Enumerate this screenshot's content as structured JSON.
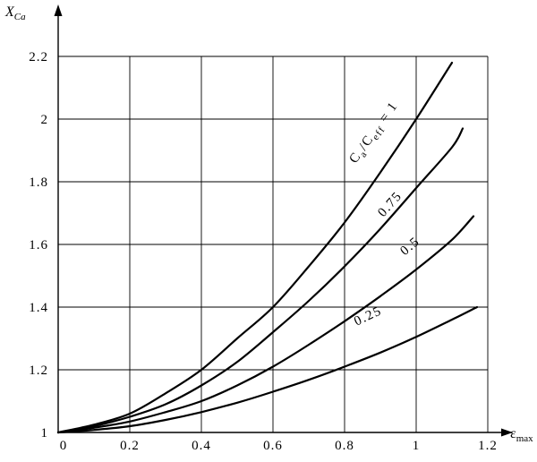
{
  "chart_data": {
    "type": "line",
    "title": "",
    "xlabel": "ε_{max}",
    "ylabel": "X_{Ca}",
    "xlim": [
      0,
      1.2
    ],
    "ylim": [
      1,
      2.2
    ],
    "grid": true,
    "legend_position": "none",
    "xticks": [
      0,
      0.2,
      0.4,
      0.6,
      0.8,
      1,
      1.2
    ],
    "xtick_labels": [
      "0",
      "0.2",
      "0.4",
      "0.6",
      "0.8",
      "1",
      "1.2"
    ],
    "yticks": [
      1,
      1.2,
      1.4,
      1.6,
      1.8,
      2,
      2.2
    ],
    "ytick_labels": [
      "1",
      "1.2",
      "1.4",
      "1.6",
      "1.8",
      "2",
      "2.2"
    ],
    "series": [
      {
        "name": "Ca/Ceff = 1",
        "x": [
          0,
          0.1,
          0.2,
          0.3,
          0.4,
          0.5,
          0.6,
          0.7,
          0.8,
          0.9,
          1.0,
          1.1
        ],
        "y": [
          1,
          1.025,
          1.06,
          1.125,
          1.2,
          1.3,
          1.4,
          1.53,
          1.67,
          1.83,
          2.0,
          2.18
        ]
      },
      {
        "name": "Ca/Ceff = 0.75",
        "x": [
          0,
          0.1,
          0.2,
          0.3,
          0.4,
          0.5,
          0.6,
          0.7,
          0.8,
          0.9,
          1.0,
          1.1,
          1.13
        ],
        "y": [
          1,
          1.02,
          1.05,
          1.09,
          1.15,
          1.225,
          1.32,
          1.42,
          1.53,
          1.65,
          1.78,
          1.91,
          1.97
        ]
      },
      {
        "name": "Ca/Ceff = 0.5",
        "x": [
          0,
          0.1,
          0.2,
          0.3,
          0.4,
          0.5,
          0.6,
          0.7,
          0.8,
          0.9,
          1.0,
          1.1,
          1.16
        ],
        "y": [
          1,
          1.015,
          1.035,
          1.065,
          1.1,
          1.15,
          1.21,
          1.28,
          1.355,
          1.435,
          1.52,
          1.615,
          1.69
        ]
      },
      {
        "name": "Ca/Ceff = 0.25",
        "x": [
          0,
          0.1,
          0.2,
          0.3,
          0.4,
          0.5,
          0.6,
          0.7,
          0.8,
          0.9,
          1.0,
          1.1,
          1.17
        ],
        "y": [
          1,
          1.008,
          1.02,
          1.04,
          1.065,
          1.095,
          1.13,
          1.168,
          1.21,
          1.255,
          1.305,
          1.36,
          1.4
        ]
      }
    ],
    "annotations": [
      {
        "text": "C_{a}/C_{eff} = 1",
        "x": 0.89,
        "y": 1.95,
        "rot": -54
      },
      {
        "text": "0.75",
        "x": 0.935,
        "y": 1.72,
        "rot": -48
      },
      {
        "text": "0.5",
        "x": 0.99,
        "y": 1.585,
        "rot": -40
      },
      {
        "text": "0.25",
        "x": 0.87,
        "y": 1.36,
        "rot": -25
      }
    ]
  }
}
